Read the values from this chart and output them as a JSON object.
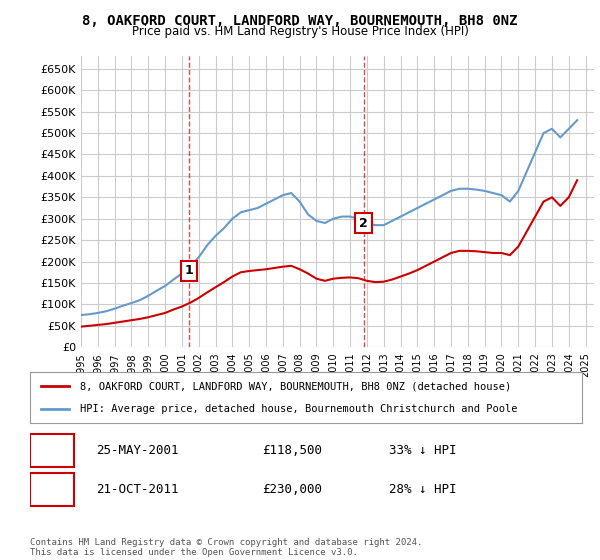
{
  "title": "8, OAKFORD COURT, LANDFORD WAY, BOURNEMOUTH, BH8 0NZ",
  "subtitle": "Price paid vs. HM Land Registry's House Price Index (HPI)",
  "red_label": "8, OAKFORD COURT, LANDFORD WAY, BOURNEMOUTH, BH8 0NZ (detached house)",
  "blue_label": "HPI: Average price, detached house, Bournemouth Christchurch and Poole",
  "footer": "Contains HM Land Registry data © Crown copyright and database right 2024.\nThis data is licensed under the Open Government Licence v3.0.",
  "annotations": [
    {
      "num": "1",
      "date": "25-MAY-2001",
      "price": "£118,500",
      "pct": "33% ↓ HPI"
    },
    {
      "num": "2",
      "date": "21-OCT-2011",
      "price": "£230,000",
      "pct": "28% ↓ HPI"
    }
  ],
  "ylim": [
    0,
    680000
  ],
  "yticks": [
    0,
    50000,
    100000,
    150000,
    200000,
    250000,
    300000,
    350000,
    400000,
    450000,
    500000,
    550000,
    600000,
    650000
  ],
  "ytick_labels": [
    "£0",
    "£50K",
    "£100K",
    "£150K",
    "£200K",
    "£250K",
    "£300K",
    "£350K",
    "£400K",
    "£450K",
    "£500K",
    "£550K",
    "£600K",
    "£650K"
  ],
  "xlim_start": 1995.0,
  "xlim_end": 2025.5,
  "background_color": "#ffffff",
  "grid_color": "#cccccc",
  "red_color": "#cc0000",
  "blue_color": "#6699cc",
  "marker1_x": 2001.4,
  "marker1_y": 118500,
  "marker2_x": 2011.8,
  "marker2_y": 230000,
  "hpi_x": [
    1995,
    1995.5,
    1996,
    1996.5,
    1997,
    1997.5,
    1998,
    1998.5,
    1999,
    1999.5,
    2000,
    2000.5,
    2001,
    2001.5,
    2002,
    2002.5,
    2003,
    2003.5,
    2004,
    2004.5,
    2005,
    2005.5,
    2006,
    2006.5,
    2007,
    2007.5,
    2008,
    2008.5,
    2009,
    2009.5,
    2010,
    2010.5,
    2011,
    2011.5,
    2012,
    2012.5,
    2013,
    2013.5,
    2014,
    2014.5,
    2015,
    2015.5,
    2016,
    2016.5,
    2017,
    2017.5,
    2018,
    2018.5,
    2019,
    2019.5,
    2020,
    2020.5,
    2021,
    2021.5,
    2022,
    2022.5,
    2023,
    2023.5,
    2024,
    2024.5
  ],
  "hpi_y": [
    75000,
    77000,
    80000,
    84000,
    90000,
    97000,
    103000,
    110000,
    120000,
    132000,
    143000,
    158000,
    172000,
    189000,
    210000,
    238000,
    260000,
    278000,
    300000,
    315000,
    320000,
    325000,
    335000,
    345000,
    355000,
    360000,
    340000,
    310000,
    295000,
    290000,
    300000,
    305000,
    305000,
    300000,
    290000,
    285000,
    285000,
    295000,
    305000,
    315000,
    325000,
    335000,
    345000,
    355000,
    365000,
    370000,
    370000,
    368000,
    365000,
    360000,
    355000,
    340000,
    365000,
    410000,
    455000,
    500000,
    510000,
    490000,
    510000,
    530000
  ],
  "red_x": [
    1995,
    1995.5,
    1996,
    1996.5,
    1997,
    1997.5,
    1998,
    1998.5,
    1999,
    1999.5,
    2000,
    2000.5,
    2001,
    2001.5,
    2002,
    2002.5,
    2003,
    2003.5,
    2004,
    2004.5,
    2005,
    2005.5,
    2006,
    2006.5,
    2007,
    2007.5,
    2008,
    2008.5,
    2009,
    2009.5,
    2010,
    2010.5,
    2011,
    2011.5,
    2012,
    2012.5,
    2013,
    2013.5,
    2014,
    2014.5,
    2015,
    2015.5,
    2016,
    2016.5,
    2017,
    2017.5,
    2018,
    2018.5,
    2019,
    2019.5,
    2020,
    2020.5,
    2021,
    2021.5,
    2022,
    2022.5,
    2023,
    2023.5,
    2024,
    2024.5
  ],
  "red_y": [
    48000,
    50000,
    52000,
    54000,
    57000,
    60000,
    63000,
    66000,
    70000,
    75000,
    80000,
    88000,
    95000,
    104000,
    115000,
    128000,
    140000,
    152000,
    165000,
    175000,
    178000,
    180000,
    182000,
    185000,
    188000,
    190000,
    182000,
    172000,
    160000,
    155000,
    160000,
    162000,
    163000,
    161000,
    155000,
    152000,
    153000,
    158000,
    165000,
    172000,
    180000,
    190000,
    200000,
    210000,
    220000,
    225000,
    225000,
    224000,
    222000,
    220000,
    220000,
    215000,
    235000,
    270000,
    305000,
    340000,
    350000,
    330000,
    350000,
    390000
  ]
}
